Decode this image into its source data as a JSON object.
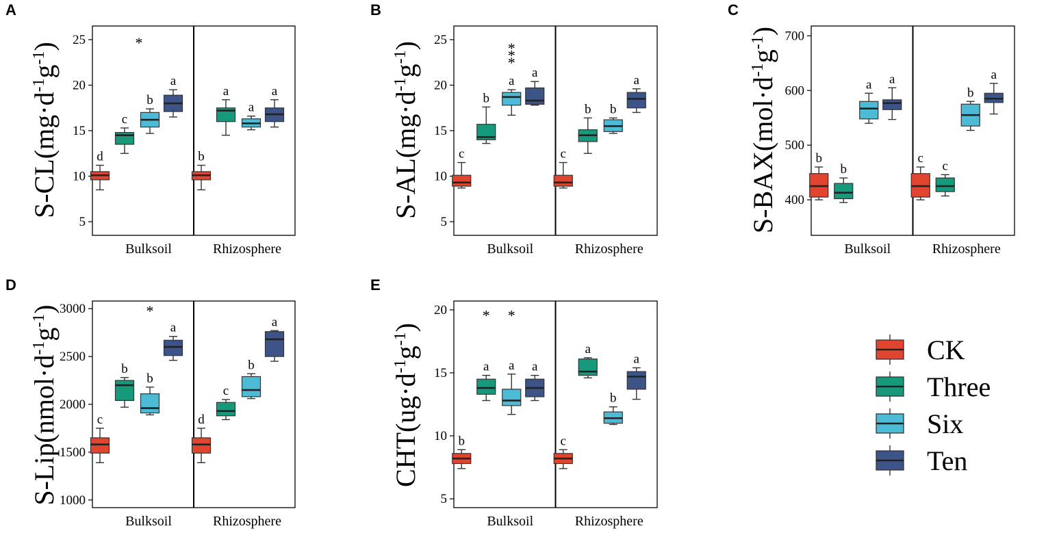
{
  "colors": {
    "CK": "#E2452F",
    "Three": "#179A7B",
    "Six": "#4DBBD6",
    "Ten": "#3C5488"
  },
  "legend": {
    "items": [
      "CK",
      "Three",
      "Six",
      "Ten"
    ]
  },
  "chart_data": [
    {
      "type": "box",
      "panel": "A",
      "ylabel": "S-CL(mg·d",
      "ylabel_exp": [
        "-1",
        "g",
        "-1",
        ")"
      ],
      "ylim": [
        3.5,
        26.5
      ],
      "yticks": [
        5,
        10,
        15,
        20,
        25
      ],
      "categories": [
        "Bulksoil",
        "Rhizosphere"
      ],
      "stars": [
        {
          "group": 0,
          "text": "*",
          "value": 25.0
        }
      ],
      "groups": [
        [
          {
            "series": "CK",
            "min": 8.5,
            "q1": 9.6,
            "median": 10.1,
            "q3": 10.5,
            "max": 11.2,
            "label": "d"
          },
          {
            "series": "Three",
            "min": 12.5,
            "q1": 13.5,
            "median": 14.5,
            "q3": 14.8,
            "max": 15.3,
            "label": "c"
          },
          {
            "series": "Six",
            "min": 14.7,
            "q1": 15.4,
            "median": 16.2,
            "q3": 17.0,
            "max": 17.4,
            "label": "b"
          },
          {
            "series": "Ten",
            "min": 16.5,
            "q1": 17.1,
            "median": 18.0,
            "q3": 18.9,
            "max": 19.5,
            "label": "a"
          }
        ],
        [
          {
            "series": "CK",
            "min": 8.5,
            "q1": 9.6,
            "median": 10.1,
            "q3": 10.5,
            "max": 11.2,
            "label": "b"
          },
          {
            "series": "Three",
            "min": 14.5,
            "q1": 16.0,
            "median": 17.2,
            "q3": 17.5,
            "max": 18.4,
            "label": "a"
          },
          {
            "series": "Six",
            "min": 15.1,
            "q1": 15.4,
            "median": 15.8,
            "q3": 16.3,
            "max": 16.6,
            "label": "a"
          },
          {
            "series": "Ten",
            "min": 15.4,
            "q1": 16.0,
            "median": 16.8,
            "q3": 17.5,
            "max": 18.4,
            "label": "a"
          }
        ]
      ]
    },
    {
      "type": "box",
      "panel": "B",
      "ylabel": "S-AL(mg·d",
      "ylabel_exp": [
        "-1",
        "g",
        "-1",
        ")"
      ],
      "ylim": [
        3.5,
        26.5
      ],
      "yticks": [
        5,
        10,
        15,
        20,
        25
      ],
      "categories": [
        "Bulksoil",
        "Rhizosphere"
      ],
      "stars": [
        {
          "group": 0,
          "text": "*",
          "value": 24.4
        },
        {
          "group": 0,
          "text": "*",
          "value": 23.6
        },
        {
          "group": 0,
          "text": "*",
          "value": 22.8
        }
      ],
      "groups": [
        [
          {
            "series": "CK",
            "min": 8.7,
            "q1": 8.9,
            "median": 9.3,
            "q3": 10.1,
            "max": 11.5,
            "label": "c"
          },
          {
            "series": "Three",
            "min": 13.6,
            "q1": 14.0,
            "median": 14.3,
            "q3": 15.7,
            "max": 17.6,
            "label": "b"
          },
          {
            "series": "Six",
            "min": 16.7,
            "q1": 17.8,
            "median": 18.7,
            "q3": 19.2,
            "max": 19.5,
            "label": "a"
          },
          {
            "series": "Ten",
            "min": 17.8,
            "q1": 17.9,
            "median": 18.3,
            "q3": 19.7,
            "max": 20.4,
            "label": "a"
          }
        ],
        [
          {
            "series": "CK",
            "min": 8.7,
            "q1": 8.9,
            "median": 9.3,
            "q3": 10.1,
            "max": 11.5,
            "label": "c"
          },
          {
            "series": "Three",
            "min": 12.5,
            "q1": 13.8,
            "median": 14.5,
            "q3": 15.1,
            "max": 16.4,
            "label": "b"
          },
          {
            "series": "Six",
            "min": 14.7,
            "q1": 14.9,
            "median": 15.5,
            "q3": 16.2,
            "max": 16.4,
            "label": "b"
          },
          {
            "series": "Ten",
            "min": 17.0,
            "q1": 17.5,
            "median": 18.5,
            "q3": 19.2,
            "max": 19.6,
            "label": "a"
          }
        ]
      ]
    },
    {
      "type": "box",
      "panel": "C",
      "ylabel": "S-BAX(mol·d",
      "ylabel_exp": [
        "-1",
        "g",
        "-1",
        ")"
      ],
      "ylim": [
        335,
        718
      ],
      "yticks": [
        400,
        500,
        600,
        700
      ],
      "categories": [
        "Bulksoil",
        "Rhizosphere"
      ],
      "stars": [],
      "groups": [
        [
          {
            "series": "CK",
            "min": 400,
            "q1": 405,
            "median": 425,
            "q3": 448,
            "max": 460,
            "label": "b"
          },
          {
            "series": "Three",
            "min": 395,
            "q1": 402,
            "median": 413,
            "q3": 430,
            "max": 440,
            "label": "b"
          },
          {
            "series": "Six",
            "min": 540,
            "q1": 548,
            "median": 567,
            "q3": 580,
            "max": 595,
            "label": "a"
          },
          {
            "series": "Ten",
            "min": 547,
            "q1": 565,
            "median": 577,
            "q3": 583,
            "max": 605,
            "label": "a"
          }
        ],
        [
          {
            "series": "CK",
            "min": 400,
            "q1": 405,
            "median": 425,
            "q3": 448,
            "max": 460,
            "label": "c"
          },
          {
            "series": "Three",
            "min": 407,
            "q1": 415,
            "median": 425,
            "q3": 440,
            "max": 446,
            "label": "c"
          },
          {
            "series": "Six",
            "min": 527,
            "q1": 535,
            "median": 555,
            "q3": 575,
            "max": 580,
            "label": "b"
          },
          {
            "series": "Ten",
            "min": 557,
            "q1": 578,
            "median": 585,
            "q3": 595,
            "max": 613,
            "label": "a"
          }
        ]
      ]
    },
    {
      "type": "box",
      "panel": "D",
      "ylabel": "S-Lip(nmol·d",
      "ylabel_exp": [
        "-1",
        "g",
        "-1",
        ")"
      ],
      "ylim": [
        920,
        3080
      ],
      "yticks": [
        1000,
        1500,
        2000,
        2500,
        3000
      ],
      "categories": [
        "Bulksoil",
        "Rhizosphere"
      ],
      "stars": [
        {
          "group": 0,
          "text": "*",
          "value": 3010
        }
      ],
      "groups": [
        [
          {
            "series": "CK",
            "min": 1390,
            "q1": 1490,
            "median": 1580,
            "q3": 1650,
            "max": 1750,
            "label": "c"
          },
          {
            "series": "Three",
            "min": 1970,
            "q1": 2040,
            "median": 2200,
            "q3": 2250,
            "max": 2280,
            "label": "b"
          },
          {
            "series": "Six",
            "min": 1890,
            "q1": 1910,
            "median": 1960,
            "q3": 2110,
            "max": 2180,
            "label": "b"
          },
          {
            "series": "Ten",
            "min": 2460,
            "q1": 2510,
            "median": 2600,
            "q3": 2670,
            "max": 2710,
            "label": "a"
          }
        ],
        [
          {
            "series": "CK",
            "min": 1390,
            "q1": 1490,
            "median": 1580,
            "q3": 1650,
            "max": 1750,
            "label": "d"
          },
          {
            "series": "Three",
            "min": 1840,
            "q1": 1880,
            "median": 1930,
            "q3": 2020,
            "max": 2050,
            "label": "c"
          },
          {
            "series": "Six",
            "min": 2060,
            "q1": 2080,
            "median": 2150,
            "q3": 2290,
            "max": 2320,
            "label": "b"
          },
          {
            "series": "Ten",
            "min": 2450,
            "q1": 2500,
            "median": 2680,
            "q3": 2760,
            "max": 2770,
            "label": "a"
          }
        ]
      ]
    },
    {
      "type": "box",
      "panel": "E",
      "ylabel": "CHT(ug·d",
      "ylabel_exp": [
        "-1",
        "g",
        "-1",
        ")"
      ],
      "ylim": [
        4.3,
        20.7
      ],
      "yticks": [
        5,
        10,
        15,
        20
      ],
      "categories": [
        "Bulksoil",
        "Rhizosphere"
      ],
      "stars": [
        {
          "group": 0,
          "text": "*",
          "value": 19.8,
          "slot": 1
        },
        {
          "group": 0,
          "text": "*",
          "value": 19.8,
          "slot": 2
        }
      ],
      "groups": [
        [
          {
            "series": "CK",
            "min": 7.4,
            "q1": 7.8,
            "median": 8.2,
            "q3": 8.6,
            "max": 8.9,
            "label": "b"
          },
          {
            "series": "Three",
            "min": 12.8,
            "q1": 13.3,
            "median": 13.8,
            "q3": 14.5,
            "max": 14.8,
            "label": "a"
          },
          {
            "series": "Six",
            "min": 11.7,
            "q1": 12.4,
            "median": 12.8,
            "q3": 13.7,
            "max": 14.9,
            "label": "a"
          },
          {
            "series": "Ten",
            "min": 12.8,
            "q1": 13.1,
            "median": 13.8,
            "q3": 14.5,
            "max": 14.8,
            "label": "a"
          }
        ],
        [
          {
            "series": "CK",
            "min": 7.4,
            "q1": 7.8,
            "median": 8.2,
            "q3": 8.6,
            "max": 8.9,
            "label": "c"
          },
          {
            "series": "Three",
            "min": 14.6,
            "q1": 14.8,
            "median": 15.1,
            "q3": 16.1,
            "max": 16.2,
            "label": "a"
          },
          {
            "series": "Six",
            "min": 10.9,
            "q1": 11.0,
            "median": 11.4,
            "q3": 11.9,
            "max": 12.3,
            "label": "b"
          },
          {
            "series": "Ten",
            "min": 12.9,
            "q1": 13.7,
            "median": 14.7,
            "q3": 15.1,
            "max": 15.4,
            "label": "a"
          }
        ]
      ]
    }
  ]
}
